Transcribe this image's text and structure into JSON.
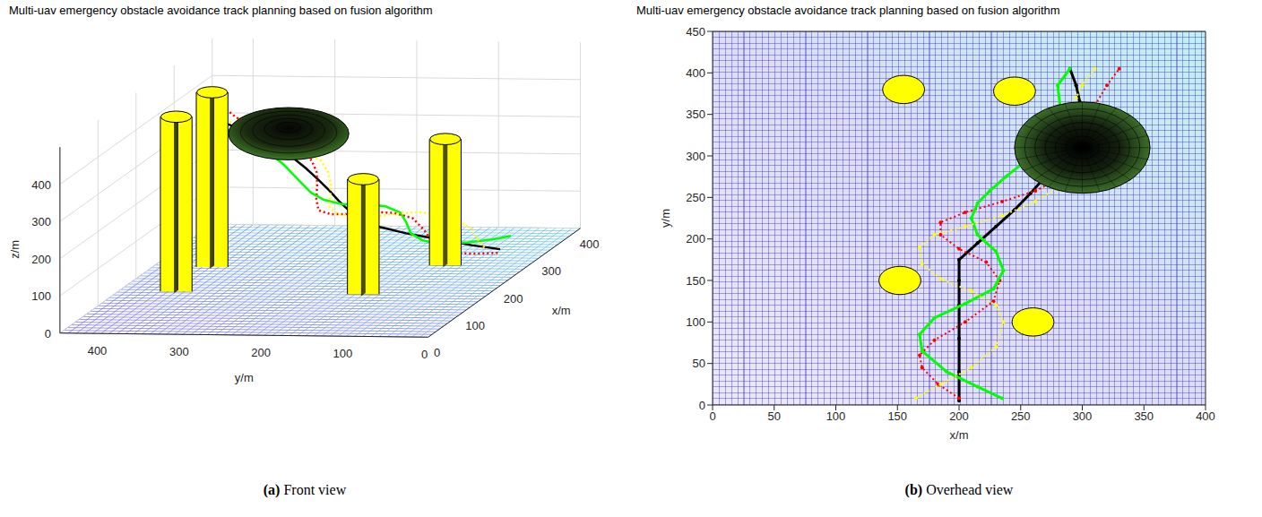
{
  "chart_data": [
    {
      "type": "line3d",
      "title": "Multi-uav emergency obstacle avoidance track planning based on fusion algorithm",
      "subtitle": "(a) Front view",
      "x_label": "x/m",
      "y_label": "y/m",
      "z_label": "z/m",
      "xlim": [
        0,
        400
      ],
      "ylim": [
        0,
        450
      ],
      "zlim": [
        0,
        500
      ],
      "xticks": [
        0,
        100,
        200,
        300,
        400
      ],
      "yticks": [
        0,
        100,
        200,
        300,
        400
      ],
      "zticks": [
        0,
        100,
        200,
        300,
        400
      ],
      "series": [
        {
          "color": "#000000",
          "line_style": "solid",
          "marker": "dot",
          "x": [
            200,
            200,
            200,
            200,
            200,
            200,
            215,
            230,
            245,
            258,
            270,
            282,
            292,
            298,
            295,
            290
          ],
          "y": [
            5,
            40,
            80,
            120,
            150,
            175,
            195,
            215,
            235,
            255,
            275,
            300,
            330,
            365,
            385,
            405
          ],
          "z": [
            90,
            100,
            115,
            130,
            145,
            160,
            175,
            190,
            210,
            230,
            250,
            275,
            300,
            330,
            350,
            370
          ]
        },
        {
          "color": "#ff0000",
          "line_style": "dotted",
          "marker": "dot",
          "x": [
            200,
            183,
            170,
            168,
            180,
            205,
            228,
            233,
            222,
            200,
            185,
            185,
            205,
            235,
            262,
            285,
            300,
            310,
            320,
            330
          ],
          "y": [
            8,
            25,
            45,
            60,
            78,
            100,
            125,
            150,
            172,
            188,
            205,
            220,
            232,
            245,
            258,
            275,
            300,
            360,
            385,
            405
          ],
          "z": [
            80,
            90,
            100,
            110,
            120,
            135,
            150,
            160,
            170,
            180,
            190,
            200,
            215,
            230,
            245,
            260,
            285,
            330,
            350,
            370
          ]
        },
        {
          "color": "#00ff00",
          "line_style": "solid",
          "marker": "dot",
          "x": [
            235,
            215,
            190,
            170,
            168,
            180,
            205,
            228,
            236,
            230,
            215,
            210,
            215,
            225,
            238,
            255,
            275,
            282,
            280,
            290
          ],
          "y": [
            8,
            22,
            40,
            65,
            85,
            105,
            122,
            140,
            162,
            185,
            205,
            225,
            243,
            258,
            275,
            295,
            330,
            360,
            385,
            405
          ],
          "z": [
            100,
            105,
            115,
            125,
            135,
            145,
            155,
            165,
            175,
            185,
            195,
            210,
            225,
            240,
            255,
            270,
            300,
            330,
            350,
            370
          ]
        },
        {
          "color": "#ffff00",
          "line_style": "dotted",
          "marker": "dot",
          "x": [
            165,
            185,
            210,
            230,
            236,
            230,
            210,
            185,
            170,
            168,
            180,
            205,
            235,
            262,
            280,
            295,
            300,
            310
          ],
          "y": [
            8,
            25,
            45,
            70,
            100,
            120,
            137,
            152,
            170,
            190,
            205,
            215,
            228,
            245,
            262,
            370,
            385,
            405
          ],
          "z": [
            120,
            125,
            135,
            145,
            155,
            165,
            175,
            185,
            195,
            205,
            215,
            225,
            235,
            250,
            265,
            340,
            355,
            370
          ]
        }
      ],
      "cylinders": [
        {
          "x": 155,
          "y": 380,
          "radius": 17,
          "height": 470
        },
        {
          "x": 245,
          "y": 378,
          "radius": 17,
          "height": 470
        },
        {
          "x": 152,
          "y": 150,
          "radius": 17,
          "height": 310
        },
        {
          "x": 260,
          "y": 100,
          "radius": 17,
          "height": 340
        }
      ],
      "sphere": {
        "x": 300,
        "y": 310,
        "z": 320,
        "radius": 55
      }
    },
    {
      "type": "line",
      "title": "Multi-uav emergency obstacle avoidance track planning based on fusion algorithm",
      "subtitle": "(b) Overhead view",
      "x_label": "x/m",
      "y_label": "y/m",
      "xlim": [
        0,
        400
      ],
      "ylim": [
        0,
        450
      ],
      "xticks": [
        0,
        50,
        100,
        150,
        200,
        250,
        300,
        350,
        400
      ],
      "yticks": [
        0,
        50,
        100,
        150,
        200,
        250,
        300,
        350,
        400,
        450
      ],
      "series": [
        {
          "color": "#000000",
          "line_style": "solid",
          "marker": "dot",
          "x": [
            200,
            200,
            200,
            200,
            200,
            200,
            215,
            230,
            245,
            258,
            270,
            282,
            292,
            298,
            295,
            290
          ],
          "y": [
            5,
            40,
            80,
            120,
            150,
            175,
            195,
            215,
            235,
            255,
            275,
            300,
            330,
            365,
            385,
            405
          ]
        },
        {
          "color": "#ff0000",
          "line_style": "dotted",
          "marker": "dot",
          "x": [
            200,
            183,
            170,
            168,
            180,
            205,
            228,
            233,
            222,
            200,
            185,
            185,
            205,
            235,
            262,
            285,
            300,
            310,
            320,
            330
          ],
          "y": [
            8,
            25,
            45,
            60,
            78,
            100,
            125,
            150,
            172,
            188,
            205,
            220,
            232,
            245,
            258,
            275,
            300,
            360,
            385,
            405
          ]
        },
        {
          "color": "#00ff00",
          "line_style": "solid",
          "marker": "dot",
          "x": [
            235,
            215,
            190,
            170,
            168,
            180,
            205,
            228,
            236,
            230,
            215,
            210,
            215,
            225,
            238,
            255,
            275,
            282,
            280,
            290
          ],
          "y": [
            8,
            22,
            40,
            65,
            85,
            105,
            122,
            140,
            162,
            185,
            205,
            225,
            243,
            258,
            275,
            295,
            330,
            360,
            385,
            405
          ]
        },
        {
          "color": "#ffff00",
          "line_style": "dotted",
          "marker": "dot",
          "x": [
            165,
            185,
            210,
            230,
            236,
            230,
            210,
            185,
            170,
            168,
            180,
            205,
            235,
            262,
            280,
            295,
            300,
            310
          ],
          "y": [
            8,
            25,
            45,
            70,
            100,
            120,
            137,
            152,
            170,
            190,
            205,
            215,
            228,
            245,
            262,
            370,
            385,
            405
          ]
        }
      ],
      "cylinders": [
        {
          "x": 155,
          "y": 380,
          "radius": 17
        },
        {
          "x": 245,
          "y": 378,
          "radius": 17
        },
        {
          "x": 152,
          "y": 150,
          "radius": 17
        },
        {
          "x": 260,
          "y": 100,
          "radius": 17
        }
      ],
      "sphere": {
        "x": 300,
        "y": 310,
        "radius": 55
      }
    }
  ]
}
